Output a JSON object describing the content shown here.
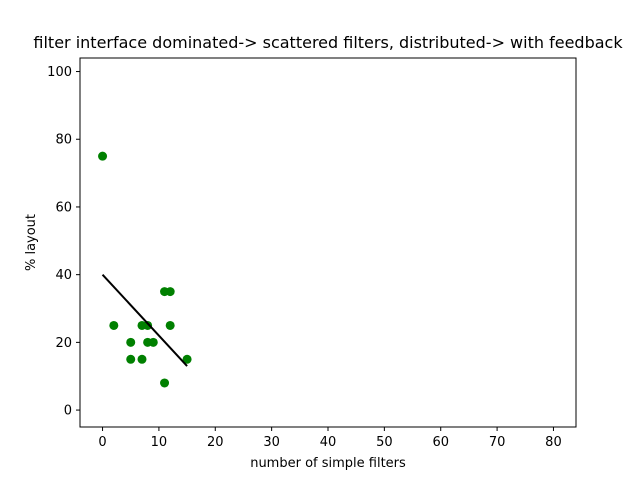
{
  "chart_data": {
    "type": "scatter",
    "title": "filter interface dominated-> scattered filters, distributed-> with feedback",
    "xlabel": "number of simple filters",
    "ylabel": "% layout",
    "xlim": [
      -4,
      84
    ],
    "ylim": [
      -5,
      104
    ],
    "xticks": [
      0,
      10,
      20,
      30,
      40,
      50,
      60,
      70,
      80
    ],
    "yticks": [
      0,
      20,
      40,
      60,
      80,
      100
    ],
    "grid": false,
    "series": [
      {
        "type": "scatter",
        "color": "#008000",
        "points": [
          {
            "x": 0,
            "y": 75
          },
          {
            "x": 2,
            "y": 25
          },
          {
            "x": 5,
            "y": 20
          },
          {
            "x": 5,
            "y": 15
          },
          {
            "x": 7,
            "y": 25
          },
          {
            "x": 7,
            "y": 15
          },
          {
            "x": 8,
            "y": 25
          },
          {
            "x": 8,
            "y": 20
          },
          {
            "x": 9,
            "y": 20
          },
          {
            "x": 11,
            "y": 35
          },
          {
            "x": 12,
            "y": 35
          },
          {
            "x": 12,
            "y": 25
          },
          {
            "x": 11,
            "y": 8
          },
          {
            "x": 15,
            "y": 15
          }
        ]
      },
      {
        "type": "line",
        "color": "#000000",
        "points": [
          {
            "x": 0,
            "y": 40
          },
          {
            "x": 15,
            "y": 13
          }
        ]
      }
    ]
  }
}
